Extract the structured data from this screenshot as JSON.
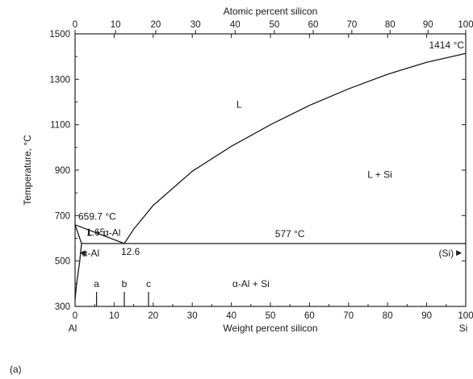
{
  "chart_data": {
    "type": "line",
    "title": "",
    "xlabel": "Weight percent silicon",
    "x2label": "Atomic percent silicon",
    "ylabel": "Temperature, °C",
    "xlim": [
      0,
      100
    ],
    "ylim": [
      300,
      1500
    ],
    "x_ticks": [
      "0",
      "10",
      "20",
      "30",
      "40",
      "50",
      "60",
      "70",
      "80",
      "90",
      "100"
    ],
    "x2_ticks": [
      "0",
      "10",
      "20",
      "30",
      "40",
      "50",
      "60",
      "70",
      "80",
      "90",
      "100"
    ],
    "y_ticks": [
      "300",
      "500",
      "700",
      "900",
      "1100",
      "1300",
      "1500"
    ],
    "grid": false,
    "endpoint_labels": {
      "left": "Al",
      "right": "Si"
    },
    "panel_label": "(a)",
    "series": [
      {
        "label_role": "liquidus-al-side",
        "x": [
          0,
          12.6
        ],
        "y": [
          659.7,
          577
        ]
      },
      {
        "label_role": "liquidus-si-side",
        "x": [
          12.6,
          15,
          20,
          30,
          40,
          50,
          60,
          70,
          80,
          90,
          100
        ],
        "y": [
          577,
          640,
          745,
          895,
          1005,
          1100,
          1185,
          1258,
          1322,
          1375,
          1414
        ]
      },
      {
        "label_role": "eutectic-isotherm",
        "x": [
          1.65,
          100
        ],
        "y": [
          577,
          577
        ]
      },
      {
        "label_role": "solidus-al",
        "x": [
          0,
          1.65
        ],
        "y": [
          659.7,
          577
        ]
      },
      {
        "label_role": "solvus-al",
        "x": [
          1.65,
          1.2,
          0.8,
          0.4,
          0
        ],
        "y": [
          577,
          500,
          450,
          400,
          330
        ]
      }
    ],
    "annotations": [
      {
        "text": "1414 °C",
        "x": 100,
        "y": 1414
      },
      {
        "text": "659.7 °C",
        "x": 0,
        "y": 659.7
      },
      {
        "text": "1.65",
        "x": 1.65,
        "y": 577
      },
      {
        "text": "12.6",
        "x": 12.6,
        "y": 577
      },
      {
        "text": "577 °C",
        "x": 55,
        "y": 577
      }
    ],
    "regions": [
      {
        "text": "L",
        "x": 42,
        "y": 1190
      },
      {
        "text": "L + Si",
        "x": 78,
        "y": 880
      },
      {
        "text": "L + α-Al",
        "x": 3.5,
        "y": 625
      },
      {
        "text": "α-Al",
        "x": 4,
        "y": 535
      },
      {
        "text": "α-Al + Si",
        "x": 45,
        "y": 400
      },
      {
        "text": "(Si)",
        "x": 95,
        "y": 535
      }
    ],
    "composition_markers": [
      {
        "label": "a",
        "x": 5.5
      },
      {
        "label": "b",
        "x": 12.6
      },
      {
        "label": "c",
        "x": 18.8
      }
    ]
  }
}
